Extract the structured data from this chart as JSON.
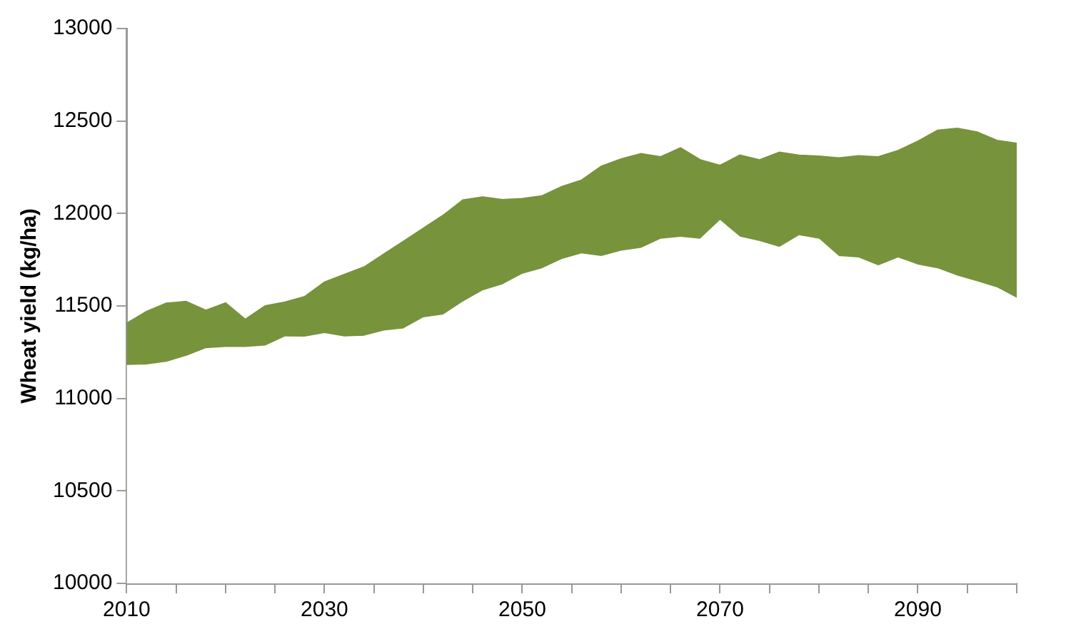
{
  "chart_data": {
    "type": "area",
    "ylabel": "Wheat yield (kg/ha)",
    "x": [
      2010,
      2012,
      2014,
      2016,
      2018,
      2020,
      2022,
      2024,
      2026,
      2028,
      2030,
      2032,
      2034,
      2036,
      2038,
      2040,
      2042,
      2044,
      2046,
      2048,
      2050,
      2052,
      2054,
      2056,
      2058,
      2060,
      2062,
      2064,
      2066,
      2068,
      2070,
      2072,
      2074,
      2076,
      2078,
      2080,
      2082,
      2084,
      2086,
      2088,
      2090,
      2092,
      2094,
      2096,
      2098,
      2100
    ],
    "series": [
      {
        "color": "#77933c",
        "values": [
          11406,
          11470,
          11515,
          11524,
          11476,
          11516,
          11427,
          11500,
          11520,
          11550,
          11629,
          11670,
          11710,
          11780,
          11850,
          11920,
          11990,
          12073,
          12089,
          12075,
          12080,
          12095,
          12145,
          12180,
          12255,
          12295,
          12323,
          12306,
          12355,
          12290,
          12260,
          12315,
          12290,
          12331,
          12315,
          12310,
          12300,
          12312,
          12306,
          12340,
          12390,
          12450,
          12460,
          12440,
          12395,
          12379
        ]
      },
      {
        "color": "#ffffff",
        "values": [
          11177,
          11180,
          11194,
          11226,
          11268,
          11274,
          11274,
          11282,
          11331,
          11330,
          11350,
          11331,
          11335,
          11363,
          11375,
          11435,
          11450,
          11520,
          11580,
          11613,
          11670,
          11700,
          11750,
          11780,
          11766,
          11795,
          11810,
          11860,
          11870,
          11860,
          11960,
          11871,
          11847,
          11815,
          11879,
          11860,
          11766,
          11758,
          11715,
          11758,
          11720,
          11700,
          11660,
          11629,
          11597,
          11540
        ]
      }
    ],
    "xlim": [
      2010,
      2100
    ],
    "xticks": [
      2010,
      {
        "value": 2015,
        "label": null
      },
      {
        "value": 2020,
        "label": null
      },
      {
        "value": 2025,
        "label": null
      },
      2030,
      {
        "value": 2035,
        "label": null
      },
      {
        "value": 2040,
        "label": null
      },
      {
        "value": 2045,
        "label": null
      },
      2050,
      {
        "value": 2055,
        "label": null
      },
      {
        "value": 2060,
        "label": null
      },
      {
        "value": 2065,
        "label": null
      },
      2070,
      {
        "value": 2075,
        "label": null
      },
      {
        "value": 2080,
        "label": null
      },
      {
        "value": 2085,
        "label": null
      },
      2090,
      {
        "value": 2095,
        "label": null
      },
      {
        "value": 2100,
        "label": null
      }
    ],
    "ylim": [
      10000,
      13000
    ],
    "yticks": [
      10000,
      10500,
      11000,
      11500,
      12000,
      12500,
      13000
    ],
    "grid": false,
    "legend": false
  }
}
